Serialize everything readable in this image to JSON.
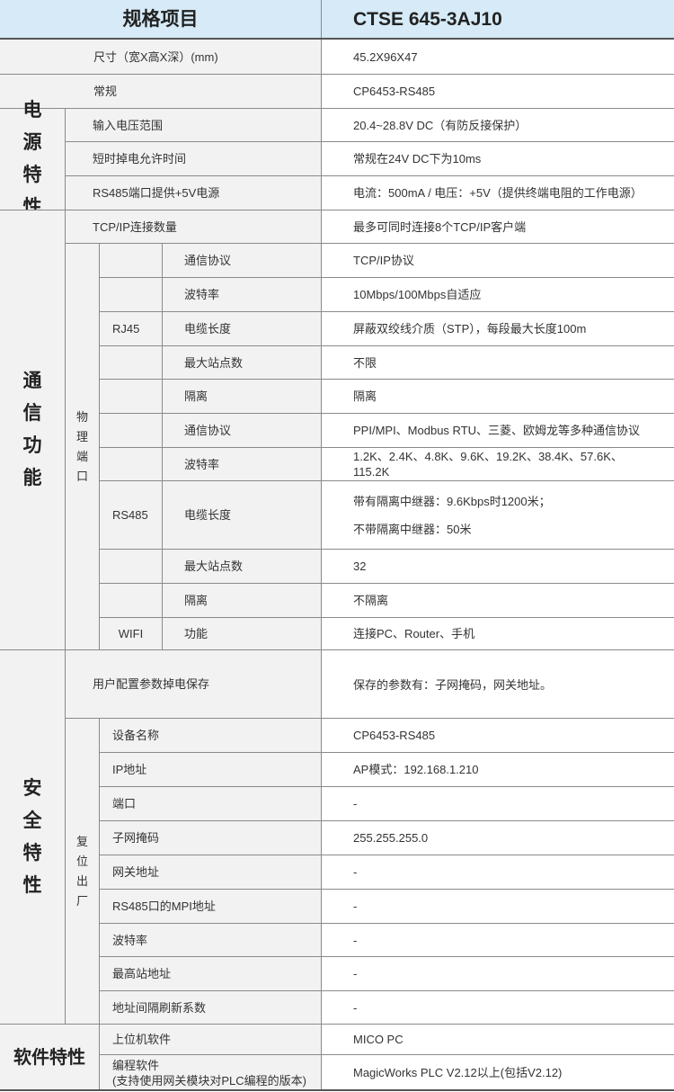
{
  "header": {
    "spec": "规格项目",
    "model": "CTSE 645-3AJ10"
  },
  "general": [
    {
      "label": "尺寸（宽X高X深）(mm)",
      "value": "45.2X96X47"
    },
    {
      "label": "常规",
      "value": "CP6453-RS485"
    }
  ],
  "power": {
    "title": "电\n源\n特\n性",
    "rows": [
      {
        "label": "输入电压范围",
        "value": "20.4~28.8V DC（有防反接保护）"
      },
      {
        "label": "短时掉电允许时间",
        "value": "常规在24V DC下为10ms"
      },
      {
        "label": "RS485端口提供+5V电源",
        "value": "电流：500mA / 电压：+5V（提供终端电阻的工作电源）"
      }
    ]
  },
  "comm": {
    "title": "通\n信\n功\n能",
    "tcp": {
      "label": "TCP/IP连接数量",
      "value": "最多可同时连接8个TCP/IP客户端"
    },
    "physical": "物\n理\n端\n口",
    "rj45": {
      "name": "RJ45",
      "rows": [
        {
          "label": "通信协议",
          "value": "TCP/IP协议"
        },
        {
          "label": "波特率",
          "value": "10Mbps/100Mbps自适应"
        },
        {
          "label": "电缆长度",
          "value": "屏蔽双绞线介质（STP），每段最大长度100m"
        },
        {
          "label": "最大站点数",
          "value": "不限"
        },
        {
          "label": "隔离",
          "value": "隔离"
        }
      ]
    },
    "rs485": {
      "name": "RS485",
      "rows": [
        {
          "label": "通信协议",
          "value": "PPI/MPI、Modbus RTU、三菱、欧姆龙等多种通信协议"
        },
        {
          "label": "波特率",
          "value": "1.2K、2.4K、4.8K、9.6K、19.2K、38.4K、57.6K、115.2K"
        },
        {
          "label": "电缆长度",
          "value": "带有隔离中继器：9.6Kbps时1200米；",
          "value2": "不带隔离中继器：50米"
        },
        {
          "label": "最大站点数",
          "value": "32"
        },
        {
          "label": "隔离",
          "value": "不隔离"
        }
      ]
    },
    "wifi": {
      "name": "WIFI",
      "label": "功能",
      "value": "连接PC、Router、手机"
    }
  },
  "security": {
    "title": "安\n全\n特\n性",
    "save": {
      "label": "用户配置参数掉电保存",
      "value": "保存的参数有：子网掩码，网关地址。"
    },
    "reset": "复\n位\n出\n厂",
    "rows": [
      {
        "label": "设备名称",
        "value": "CP6453-RS485"
      },
      {
        "label": "IP地址",
        "value": "AP模式：192.168.1.210"
      },
      {
        "label": "端口",
        "value": "-"
      },
      {
        "label": "子网掩码",
        "value": "255.255.255.0"
      },
      {
        "label": "网关地址",
        "value": "-"
      },
      {
        "label": "RS485口的MPI地址",
        "value": "-"
      },
      {
        "label": "波特率",
        "value": "-"
      },
      {
        "label": "最高站地址",
        "value": "-"
      },
      {
        "label": "地址间隔刷新系数",
        "value": "-"
      }
    ]
  },
  "software": {
    "title": "软件特性",
    "rows": [
      {
        "label": "上位机软件",
        "value": "MICO PC"
      },
      {
        "label": "编程软件",
        "label2": "(支持使用网关模块对PLC编程的版本)",
        "value": "MagicWorks PLC V2.12以上(包括V2.12)"
      }
    ]
  }
}
